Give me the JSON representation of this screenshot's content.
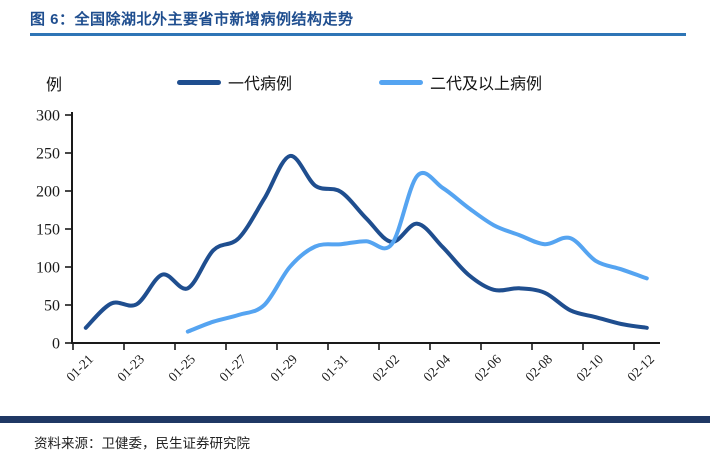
{
  "header": {
    "title": "图 6：全国除湖北外主要省市新增病例结构走势",
    "accent_color": "#1F4E8F",
    "underline_color": "#2E75B6"
  },
  "chart_data": {
    "type": "line",
    "title": "全国除湖北外主要省市新增病例结构走势",
    "unit_label": "例",
    "xlabel": "",
    "ylabel": "例",
    "ylim": [
      0,
      300
    ],
    "y_ticks": [
      0,
      50,
      100,
      150,
      200,
      250,
      300
    ],
    "grid": false,
    "smooth": true,
    "legend_position": "top",
    "x": [
      "01-21",
      "01-22",
      "01-23",
      "01-24",
      "01-25",
      "01-26",
      "01-27",
      "01-28",
      "01-29",
      "01-30",
      "01-31",
      "02-01",
      "02-02",
      "02-03",
      "02-04",
      "02-05",
      "02-06",
      "02-07",
      "02-08",
      "02-09",
      "02-10",
      "02-11",
      "02-12"
    ],
    "x_tick_labels": [
      "01-21",
      "01-23",
      "01-25",
      "01-27",
      "01-29",
      "01-31",
      "02-02",
      "02-04",
      "02-06",
      "02-08",
      "02-10",
      "02-12"
    ],
    "series": [
      {
        "name": "一代病例",
        "color": "#1F4E8F",
        "start_index": 0,
        "values": [
          20,
          52,
          51,
          90,
          72,
          122,
          138,
          190,
          246,
          207,
          199,
          164,
          133,
          157,
          126,
          90,
          70,
          72,
          66,
          43,
          34,
          25,
          20
        ]
      },
      {
        "name": "二代及以上病例",
        "color": "#55A4F1",
        "start_index": 4,
        "values": [
          15,
          28,
          37,
          50,
          100,
          127,
          130,
          134,
          130,
          220,
          204,
          178,
          155,
          142,
          130,
          138,
          108,
          97,
          85
        ]
      }
    ]
  },
  "footer": {
    "source_label": "资料来源：卫健委，民生证券研究院",
    "bar_color": "#1F3864"
  }
}
